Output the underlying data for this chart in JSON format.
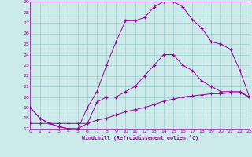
{
  "bg_color": "#cceaea",
  "line_color": "#990099",
  "grid_color": "#99cccc",
  "xmin": 0,
  "xmax": 23,
  "ymin": 17,
  "ymax": 29,
  "xlabel": "Windchill (Refroidissement éolien,°C)",
  "curve1_x": [
    0,
    1,
    2,
    3,
    4,
    5,
    6,
    7,
    8,
    9,
    10,
    11,
    12,
    13,
    14,
    15,
    16,
    17,
    18,
    19,
    20,
    21,
    22,
    23
  ],
  "curve1_y": [
    19,
    18,
    17.5,
    17.2,
    17.0,
    17.0,
    19.0,
    20.5,
    23.0,
    25.2,
    27.2,
    27.2,
    27.5,
    28.5,
    29.0,
    29.0,
    28.5,
    27.3,
    26.5,
    25.2,
    25.0,
    24.5,
    22.5,
    20.0
  ],
  "curve2_x": [
    0,
    1,
    2,
    3,
    4,
    5,
    6,
    7,
    8,
    9,
    10,
    11,
    12,
    13,
    14,
    15,
    16,
    17,
    18,
    19,
    20,
    21,
    22,
    23
  ],
  "curve2_y": [
    19.0,
    18.0,
    17.5,
    17.2,
    17.0,
    17.0,
    17.5,
    19.5,
    20.0,
    20.0,
    20.5,
    21.0,
    22.0,
    23.0,
    24.0,
    24.0,
    23.0,
    22.5,
    21.5,
    21.0,
    20.5,
    20.5,
    20.5,
    20.0
  ],
  "curve3_x": [
    0,
    1,
    2,
    3,
    4,
    5,
    6,
    7,
    8,
    9,
    10,
    11,
    12,
    13,
    14,
    15,
    16,
    17,
    18,
    19,
    20,
    21,
    22,
    23
  ],
  "curve3_y": [
    17.5,
    17.5,
    17.5,
    17.5,
    17.5,
    17.5,
    17.5,
    17.8,
    18.0,
    18.3,
    18.6,
    18.8,
    19.0,
    19.3,
    19.6,
    19.8,
    20.0,
    20.1,
    20.2,
    20.3,
    20.3,
    20.4,
    20.4,
    20.0
  ]
}
